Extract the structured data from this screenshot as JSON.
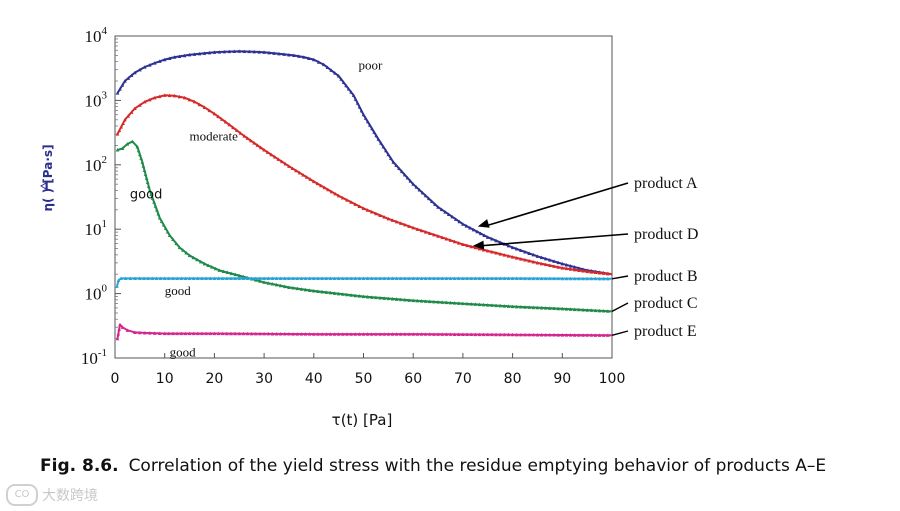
{
  "chart_data": {
    "type": "line",
    "title": "",
    "xlabel": "τ(t) [Pa]",
    "ylabel": "η( ) [Pa·s]",
    "xlim": [
      0,
      100
    ],
    "ylim_log10": [
      -1,
      4
    ],
    "y_scale": "log",
    "x_ticks": [
      "0",
      "10",
      "20",
      "30",
      "40",
      "50",
      "60",
      "70",
      "80",
      "90",
      "100"
    ],
    "y_ticks": [
      {
        "base": "10",
        "exp": "-1"
      },
      {
        "base": "10",
        "exp": "0"
      },
      {
        "base": "10",
        "exp": "1"
      },
      {
        "base": "10",
        "exp": "2"
      },
      {
        "base": "10",
        "exp": "3"
      },
      {
        "base": "10",
        "exp": "4"
      }
    ],
    "series": [
      {
        "name": "product A",
        "color": "#2e3192",
        "x": [
          0.5,
          2,
          4,
          6,
          8,
          10,
          12,
          15,
          18,
          20,
          22,
          25,
          28,
          30,
          33,
          36,
          38,
          40,
          42,
          45,
          48,
          50,
          53,
          56,
          60,
          65,
          70,
          75,
          80,
          85,
          90,
          95,
          100
        ],
        "y": [
          1300,
          2000,
          2700,
          3300,
          3800,
          4300,
          4700,
          5100,
          5400,
          5600,
          5700,
          5800,
          5700,
          5600,
          5300,
          5000,
          4700,
          4300,
          3600,
          2400,
          1200,
          600,
          250,
          110,
          50,
          22,
          12,
          7.5,
          5.2,
          3.8,
          2.9,
          2.3,
          2.0
        ]
      },
      {
        "name": "product D",
        "color": "#d42a2a",
        "x": [
          0.5,
          2,
          4,
          6,
          8,
          10,
          12,
          14,
          16,
          18,
          20,
          23,
          26,
          30,
          35,
          40,
          45,
          50,
          55,
          60,
          65,
          70,
          75,
          80,
          85,
          90,
          95,
          100
        ],
        "y": [
          300,
          500,
          750,
          950,
          1100,
          1200,
          1180,
          1100,
          950,
          780,
          620,
          420,
          280,
          170,
          95,
          55,
          33,
          21,
          14.5,
          10.5,
          7.8,
          5.8,
          4.6,
          3.7,
          3.0,
          2.5,
          2.2,
          2.0
        ]
      },
      {
        "name": "product C",
        "color": "#1f8a4a",
        "x": [
          0.5,
          1.5,
          2.5,
          3.5,
          4.5,
          5.5,
          7,
          9,
          11,
          13,
          15,
          18,
          21,
          25,
          30,
          35,
          40,
          50,
          60,
          70,
          80,
          90,
          100
        ],
        "y": [
          170,
          180,
          210,
          230,
          190,
          110,
          40,
          15,
          8,
          5.2,
          3.9,
          2.9,
          2.3,
          1.9,
          1.5,
          1.25,
          1.1,
          0.9,
          0.78,
          0.7,
          0.63,
          0.58,
          0.53
        ]
      },
      {
        "name": "product B",
        "color": "#29a3d6",
        "x": [
          0.4,
          0.7,
          1.2,
          5,
          20,
          40,
          60,
          80,
          100
        ],
        "y": [
          1.3,
          1.6,
          1.72,
          1.72,
          1.72,
          1.72,
          1.72,
          1.72,
          1.7
        ]
      },
      {
        "name": "product E",
        "color": "#d4268f",
        "x": [
          0.5,
          1,
          1.5,
          2.5,
          4,
          6,
          10,
          20,
          40,
          60,
          80,
          100
        ],
        "y": [
          0.2,
          0.33,
          0.3,
          0.27,
          0.25,
          0.245,
          0.24,
          0.24,
          0.235,
          0.235,
          0.23,
          0.225
        ]
      }
    ],
    "annotations": [
      {
        "text": "poor",
        "x": 49,
        "y": 3000,
        "font": "serif"
      },
      {
        "text": "moderate",
        "x": 15,
        "y": 240,
        "font": "serif"
      },
      {
        "text": "good",
        "x": 3,
        "y": 30,
        "font": "sans"
      },
      {
        "text": "good",
        "x": 10,
        "y": 0.95,
        "font": "serif"
      },
      {
        "text": "good",
        "x": 11,
        "y": 0.105,
        "font": "serif"
      }
    ],
    "legend_labels": [
      {
        "text": "product A",
        "anchor_x": 73,
        "anchor_y": 11
      },
      {
        "text": "product D",
        "anchor_x": 72,
        "anchor_y": 5.5
      },
      {
        "text": "product B",
        "anchor_x": 100,
        "anchor_y": 1.7
      },
      {
        "text": "product C",
        "anchor_x": 100,
        "anchor_y": 0.53
      },
      {
        "text": "product E",
        "anchor_x": 100,
        "anchor_y": 0.225
      }
    ]
  },
  "caption": {
    "figure_label": "Fig. 8.6.",
    "text": "Correlation of the yield stress with the residue emptying behavior of products A–E"
  },
  "watermark": {
    "text": "大数跨境",
    "icon_text": "CO"
  }
}
